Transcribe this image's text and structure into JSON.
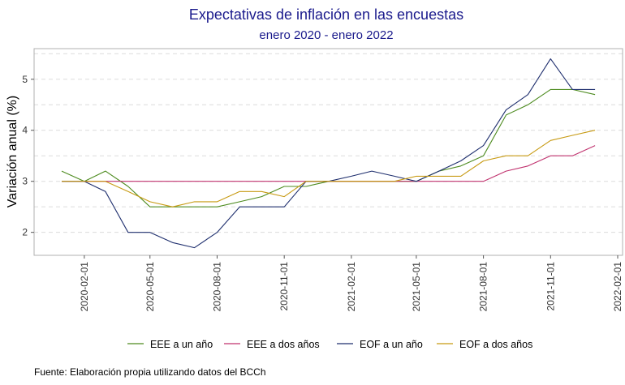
{
  "chart_data": {
    "type": "line",
    "title": "Expectativas de inflación en las encuestas",
    "subtitle": "enero 2020 - enero 2022",
    "xlabel": "",
    "ylabel": "Variación anual (%)",
    "xlim": [
      "2020-01-01",
      "2022-02-01"
    ],
    "ylim": [
      1.55,
      5.6
    ],
    "yticks": [
      2,
      3,
      4,
      5
    ],
    "xticks": [
      "2020-02-01",
      "2020-05-01",
      "2020-08-01",
      "2020-11-01",
      "2021-02-01",
      "2021-05-01",
      "2021-08-01",
      "2021-11-01",
      "2022-02-01"
    ],
    "grid": true,
    "legend_position": "bottom",
    "x": [
      "2020-01-01",
      "2020-02-01",
      "2020-03-01",
      "2020-04-01",
      "2020-05-01",
      "2020-06-01",
      "2020-07-01",
      "2020-08-01",
      "2020-09-01",
      "2020-10-01",
      "2020-11-01",
      "2020-12-01",
      "2021-01-01",
      "2021-02-01",
      "2021-03-01",
      "2021-04-01",
      "2021-05-01",
      "2021-06-01",
      "2021-07-01",
      "2021-08-01",
      "2021-09-01",
      "2021-10-01",
      "2021-11-01",
      "2021-12-01",
      "2022-01-01"
    ],
    "series": [
      {
        "name": "EEE a un año",
        "color": "#4d8b1f",
        "values": [
          3.2,
          3.0,
          3.2,
          2.9,
          2.5,
          2.5,
          2.5,
          2.5,
          2.6,
          2.7,
          2.9,
          2.9,
          3.0,
          3.0,
          3.0,
          3.0,
          3.0,
          3.2,
          3.3,
          3.5,
          4.3,
          4.5,
          4.8,
          4.8,
          4.7
        ]
      },
      {
        "name": "EEE a dos años",
        "color": "#c0326e",
        "values": [
          3.0,
          3.0,
          3.0,
          3.0,
          3.0,
          3.0,
          3.0,
          3.0,
          3.0,
          3.0,
          3.0,
          3.0,
          3.0,
          3.0,
          3.0,
          3.0,
          3.0,
          3.0,
          3.0,
          3.0,
          3.2,
          3.3,
          3.5,
          3.5,
          3.7
        ]
      },
      {
        "name": "EOF a un año",
        "color": "#1f2f6e",
        "values": [
          3.0,
          3.0,
          2.8,
          2.0,
          2.0,
          1.8,
          1.7,
          2.0,
          2.5,
          2.5,
          2.5,
          3.0,
          3.0,
          3.1,
          3.2,
          3.1,
          3.0,
          3.2,
          3.4,
          3.7,
          4.4,
          4.7,
          5.4,
          4.8,
          4.8
        ]
      },
      {
        "name": "EOF a dos años",
        "color": "#c79a12",
        "values": [
          3.0,
          3.0,
          3.0,
          2.8,
          2.6,
          2.5,
          2.6,
          2.6,
          2.8,
          2.8,
          2.7,
          3.0,
          3.0,
          3.0,
          3.0,
          3.0,
          3.1,
          3.1,
          3.1,
          3.4,
          3.5,
          3.5,
          3.8,
          3.9,
          4.0
        ]
      }
    ]
  },
  "source_text": "Fuente: Elaboración propia utilizando datos del BCCh"
}
